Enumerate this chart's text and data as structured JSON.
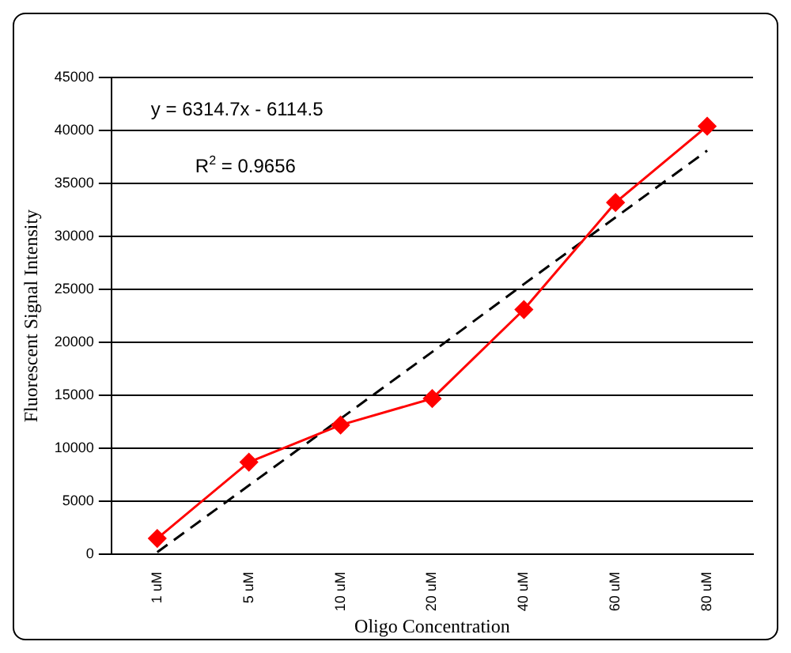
{
  "chart_data": {
    "type": "line",
    "xlabel": "Oligo Concentration",
    "ylabel": "Fluorescent Signal Intensity",
    "categories": [
      "1 uM",
      "5 uM",
      "10 uM",
      "20 uM",
      "40 uM",
      "60 uM",
      "80 uM"
    ],
    "series": [
      {
        "type": "line",
        "color": "#ff0000",
        "values": [
          1500,
          8700,
          12200,
          14700,
          23100,
          33200,
          40400
        ],
        "marker": "diamond",
        "line_style": "solid"
      },
      {
        "type": "line",
        "color": "#000000",
        "values": [
          200,
          6500,
          12800,
          19100,
          25500,
          31800,
          38100
        ],
        "marker": "none",
        "line_style": "dashed"
      }
    ],
    "ylim": [
      0,
      45000
    ],
    "yticks": [
      0,
      5000,
      10000,
      15000,
      20000,
      25000,
      30000,
      35000,
      40000,
      45000
    ],
    "grid": "y",
    "legend": false,
    "annotations": [
      "y = 6314.7x - 6114.5",
      "R$^{2}$ = 0.9656"
    ]
  }
}
